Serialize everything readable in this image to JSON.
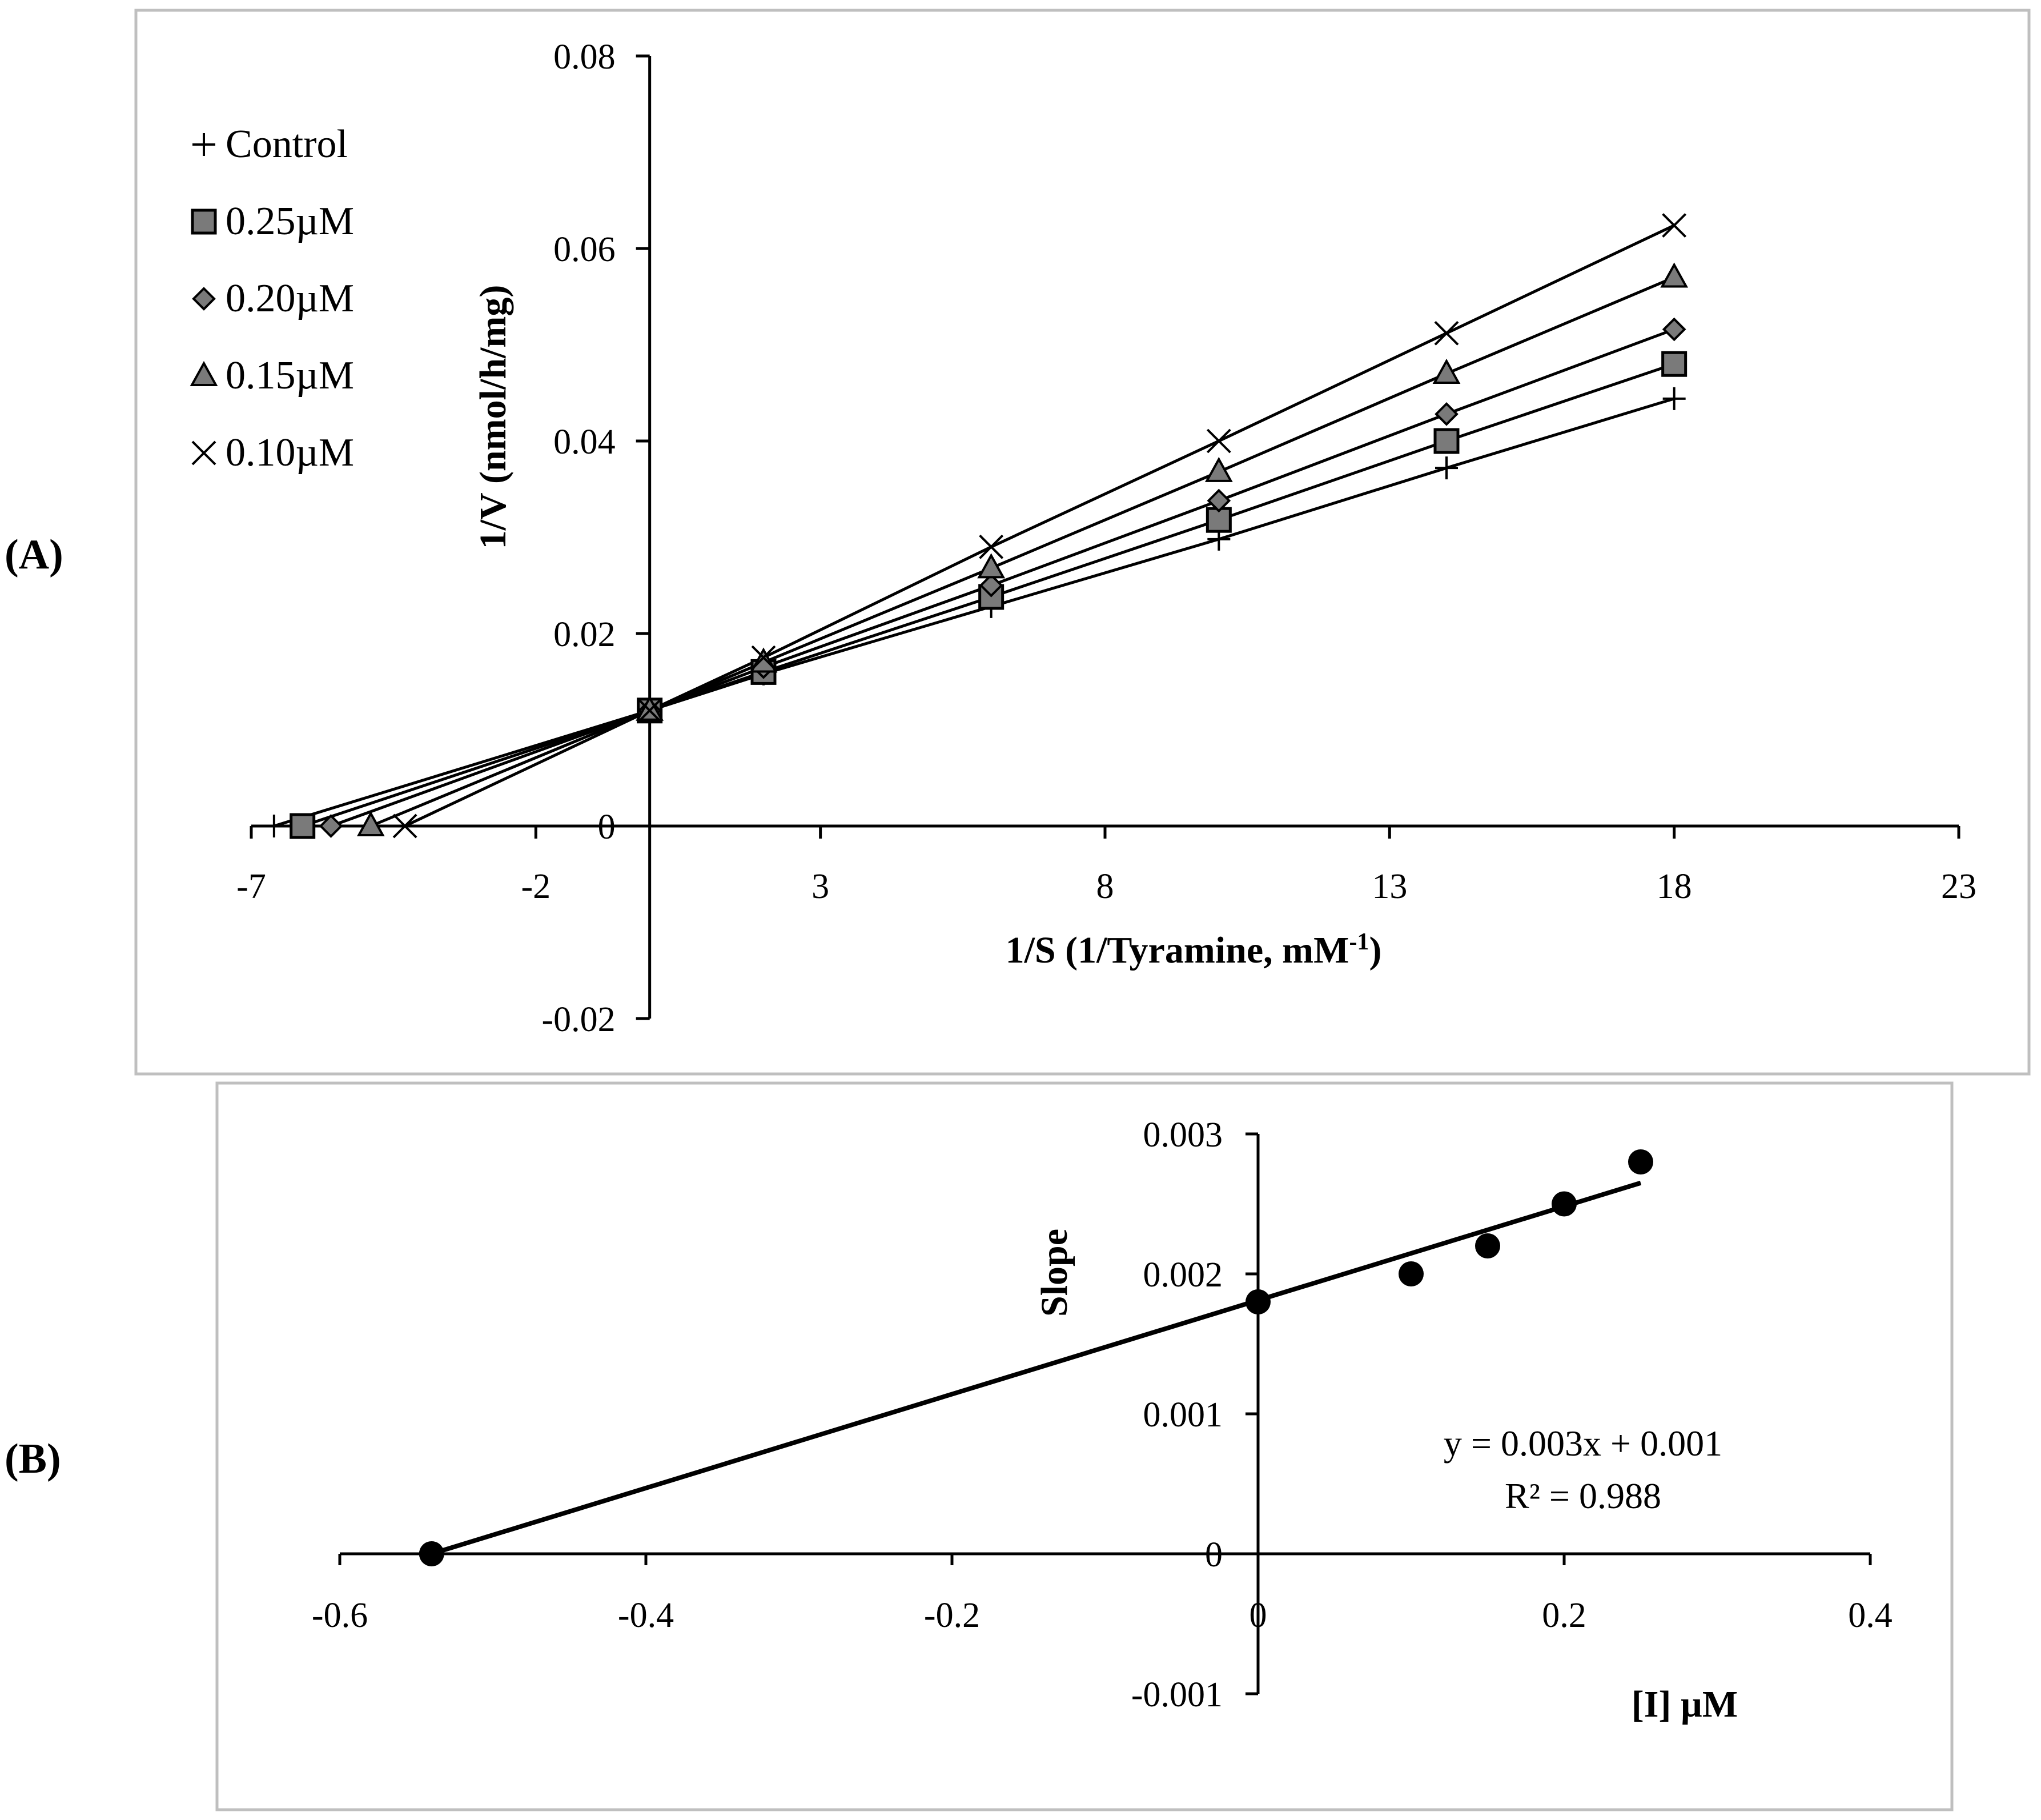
{
  "chart_data": [
    {
      "panel_label": "(A)",
      "type": "line",
      "title": "",
      "xlabel": "1/S (1/Tyramine, mM",
      "xlabel_sup": "-1",
      "xlabel_close": ")",
      "ylabel": "1/V (nmol/h/mg)",
      "xlim": [
        -7,
        23
      ],
      "ylim": [
        -0.02,
        0.08
      ],
      "xticks": [
        -7,
        -2,
        3,
        8,
        13,
        18,
        23
      ],
      "xtick_labels": [
        "-7",
        "-2",
        "3",
        "8",
        "13",
        "18",
        "23"
      ],
      "yticks": [
        -0.02,
        0,
        0.02,
        0.04,
        0.06,
        0.08
      ],
      "ytick_labels": [
        "-0.02",
        "0",
        "0.02",
        "0.04",
        "0.06",
        "0.08"
      ],
      "legend_position": "top-left",
      "series": [
        {
          "name": "Control",
          "marker": "plus",
          "x": [
            -6.6,
            0,
            2,
            6,
            10,
            14,
            18
          ],
          "y": [
            0,
            0.012,
            0.0158,
            0.0228,
            0.0298,
            0.0372,
            0.0444
          ]
        },
        {
          "name": "0.25µM",
          "marker": "square",
          "x": [
            -6.1,
            0,
            2,
            6,
            10,
            14,
            18
          ],
          "y": [
            0,
            0.012,
            0.016,
            0.0238,
            0.0318,
            0.04,
            0.048
          ]
        },
        {
          "name": "0.20µM",
          "marker": "diamond",
          "x": [
            -5.6,
            0,
            2,
            6,
            10,
            14,
            18
          ],
          "y": [
            0,
            0.012,
            0.0165,
            0.025,
            0.0338,
            0.0428,
            0.0516
          ]
        },
        {
          "name": "0.15µM",
          "marker": "triangle",
          "x": [
            -4.9,
            0,
            2,
            6,
            10,
            14,
            18
          ],
          "y": [
            0,
            0.012,
            0.017,
            0.0268,
            0.0368,
            0.047,
            0.057
          ]
        },
        {
          "name": "0.10µM",
          "marker": "x",
          "x": [
            -4.3,
            0,
            2,
            6,
            10,
            14,
            18
          ],
          "y": [
            0,
            0.012,
            0.0175,
            0.029,
            0.04,
            0.0512,
            0.0624
          ]
        }
      ]
    },
    {
      "panel_label": "(B)",
      "type": "scatter",
      "title": "",
      "xlabel": "[I] µM",
      "ylabel": "Slope",
      "xlim": [
        -0.6,
        0.4
      ],
      "ylim": [
        -0.001,
        0.003
      ],
      "xticks": [
        -0.6,
        -0.4,
        -0.2,
        0,
        0.2,
        0.4
      ],
      "xtick_labels": [
        "-0.6",
        "-0.4",
        "-0.2",
        "0",
        "0.2",
        "0.4"
      ],
      "yticks": [
        -0.001,
        0,
        0.001,
        0.002,
        0.003
      ],
      "ytick_labels": [
        "-0.001",
        "0",
        "0.001",
        "0.002",
        "0.003"
      ],
      "points": {
        "x": [
          -0.54,
          0,
          0.1,
          0.15,
          0.2,
          0.25
        ],
        "y": [
          0,
          0.0018,
          0.002,
          0.0022,
          0.0025,
          0.0028
        ]
      },
      "trendline": {
        "x": [
          -0.54,
          0.25
        ],
        "y": [
          0,
          0.00265
        ]
      },
      "equation": "y = 0.003x + 0.001",
      "r_squared": "R² = 0.988"
    }
  ]
}
